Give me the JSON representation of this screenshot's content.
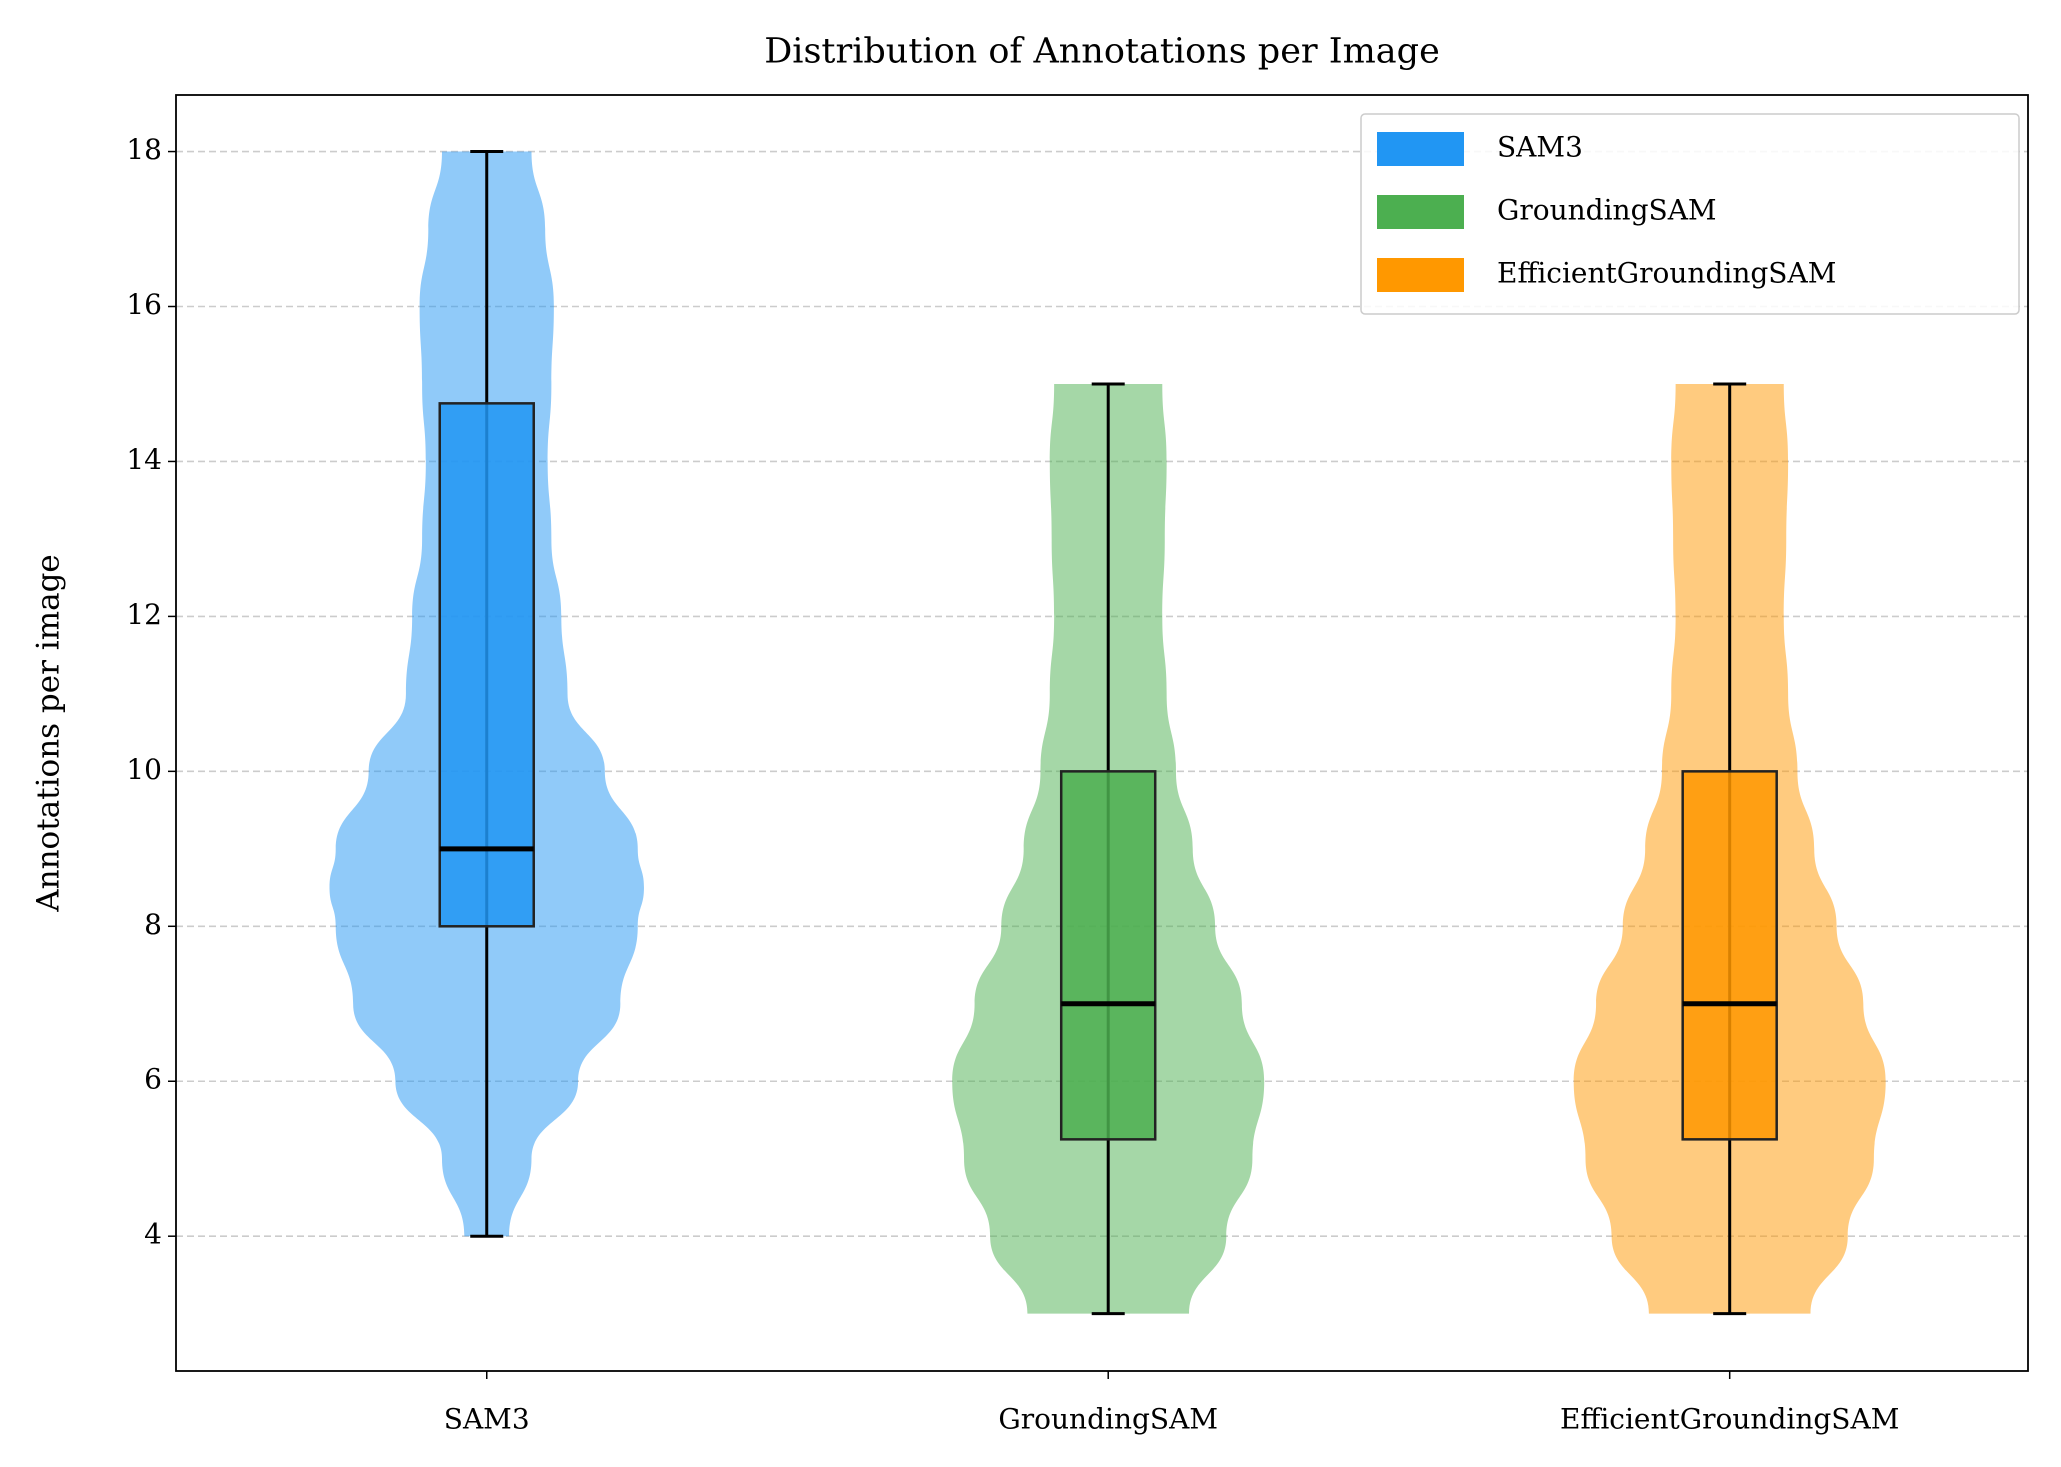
{
  "chart_data": {
    "type": "violin",
    "title": "Distribution of Annotations per Image",
    "ylabel": "Annotations per image",
    "categories": [
      "SAM3",
      "GroundingSAM",
      "EfficientGroundingSAM"
    ],
    "xlim": [
      0.5,
      3.48
    ],
    "ylim": [
      2.26,
      18.73
    ],
    "yticks": [
      4,
      6,
      8,
      10,
      12,
      14,
      16,
      18
    ],
    "grid": true,
    "legend": "upper right",
    "series": [
      {
        "name": "SAM3",
        "color": "#2196f3",
        "whisker_low": 4,
        "q1": 8,
        "median": 9,
        "q3": 14.75,
        "whisker_high": 18,
        "violin_y": [
          4,
          5,
          6,
          7,
          8,
          8.5,
          9,
          10,
          11,
          12,
          13,
          14,
          15,
          16,
          17,
          18
        ],
        "violin_half_width": [
          0.036,
          0.072,
          0.147,
          0.215,
          0.243,
          0.253,
          0.243,
          0.19,
          0.13,
          0.12,
          0.104,
          0.098,
          0.104,
          0.108,
          0.094,
          0.072
        ]
      },
      {
        "name": "GroundingSAM",
        "color": "#4caf50",
        "whisker_low": 3,
        "q1": 5.25,
        "median": 7,
        "q3": 10,
        "whisker_high": 15,
        "violin_y": [
          3,
          4,
          5,
          6,
          7,
          8,
          9,
          10,
          11,
          12,
          13,
          14,
          15
        ],
        "violin_half_width": [
          0.13,
          0.19,
          0.232,
          0.251,
          0.215,
          0.172,
          0.136,
          0.109,
          0.094,
          0.087,
          0.091,
          0.094,
          0.087
        ]
      },
      {
        "name": "EfficientGroundingSAM",
        "color": "#ff9800",
        "whisker_low": 3,
        "q1": 5.25,
        "median": 7,
        "q3": 10,
        "whisker_high": 15,
        "violin_y": [
          3,
          4,
          5,
          6,
          7,
          8,
          9,
          10,
          11,
          12,
          13,
          14,
          15
        ],
        "violin_half_width": [
          0.13,
          0.19,
          0.232,
          0.251,
          0.215,
          0.172,
          0.136,
          0.109,
          0.094,
          0.087,
          0.091,
          0.094,
          0.087
        ]
      }
    ]
  }
}
